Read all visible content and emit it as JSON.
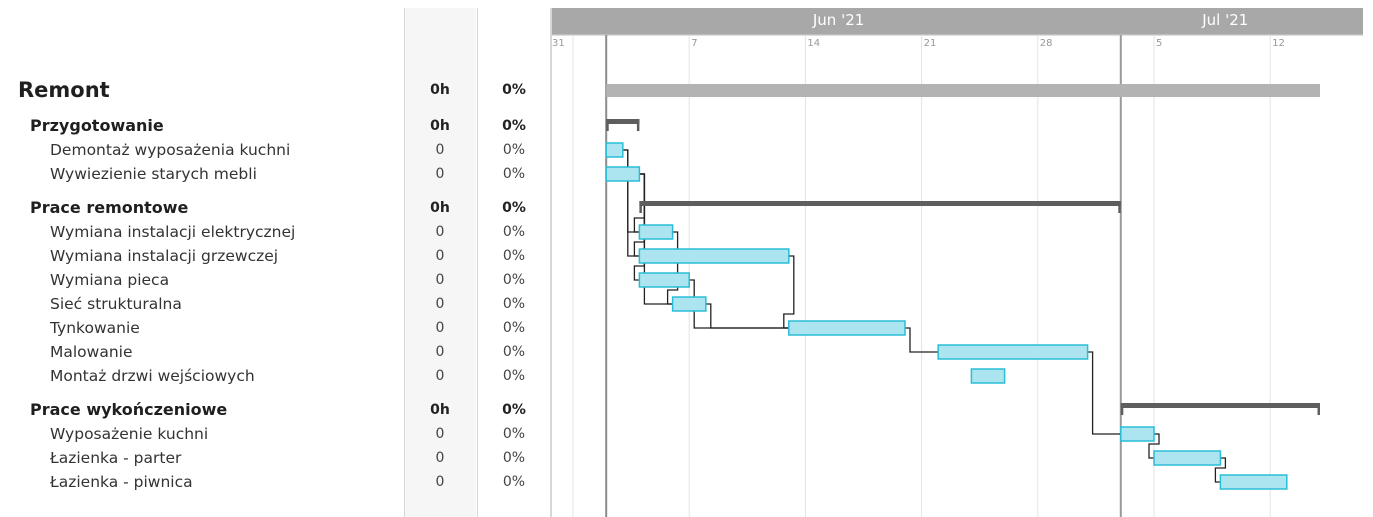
{
  "chart_data": {
    "type": "gantt",
    "months": [
      "Jun '21",
      "Jul '21"
    ],
    "day_ticks": [
      "31",
      "7",
      "14",
      "21",
      "28",
      "5",
      "12"
    ],
    "range": {
      "start": "2021-05-31",
      "end": "2021-07-18"
    },
    "today": "2021-07-03",
    "colors": {
      "task_fill": "#ace5f0",
      "task_border": "#29bdd6",
      "summary": "#5e5e5e",
      "project": "#b3b3b3",
      "header": "#a8a8a8",
      "grid": "#e3e3e3",
      "link": "#222222"
    },
    "rows": [
      {
        "id": "p",
        "type": "project",
        "name": "Remont",
        "hours": "0h",
        "pct": "0%",
        "start": "2021-06-02",
        "end": "2021-07-15"
      },
      {
        "id": "g1",
        "type": "group",
        "name": "Przygotowanie",
        "hours": "0h",
        "pct": "0%",
        "start": "2021-06-02",
        "end": "2021-06-04"
      },
      {
        "id": "t1",
        "type": "task",
        "name": "Demontaż wyposażenia kuchni",
        "hours": "0",
        "pct": "0%",
        "start": "2021-06-02",
        "end": "2021-06-03"
      },
      {
        "id": "t2",
        "type": "task",
        "name": "Wywiezienie starych mebli",
        "hours": "0",
        "pct": "0%",
        "start": "2021-06-02",
        "end": "2021-06-04"
      },
      {
        "id": "g2",
        "type": "group",
        "name": "Prace remontowe",
        "hours": "0h",
        "pct": "0%",
        "start": "2021-06-04",
        "end": "2021-07-03"
      },
      {
        "id": "t3",
        "type": "task",
        "name": "Wymiana instalacji elektrycznej",
        "hours": "0",
        "pct": "0%",
        "start": "2021-06-04",
        "end": "2021-06-06"
      },
      {
        "id": "t4",
        "type": "task",
        "name": "Wymiana instalacji grzewczej",
        "hours": "0",
        "pct": "0%",
        "start": "2021-06-04",
        "end": "2021-06-13"
      },
      {
        "id": "t5",
        "type": "task",
        "name": "Wymiana pieca",
        "hours": "0",
        "pct": "0%",
        "start": "2021-06-04",
        "end": "2021-06-07"
      },
      {
        "id": "t6",
        "type": "task",
        "name": "Sieć strukturalna",
        "hours": "0",
        "pct": "0%",
        "start": "2021-06-06",
        "end": "2021-06-08"
      },
      {
        "id": "t7",
        "type": "task",
        "name": "Tynkowanie",
        "hours": "0",
        "pct": "0%",
        "start": "2021-06-13",
        "end": "2021-06-20"
      },
      {
        "id": "t8",
        "type": "task",
        "name": "Malowanie",
        "hours": "0",
        "pct": "0%",
        "start": "2021-06-22",
        "end": "2021-07-01"
      },
      {
        "id": "t9",
        "type": "task",
        "name": "Montaż drzwi wejściowych",
        "hours": "0",
        "pct": "0%",
        "start": "2021-06-24",
        "end": "2021-06-26"
      },
      {
        "id": "g3",
        "type": "group",
        "name": "Prace wykończeniowe",
        "hours": "0h",
        "pct": "0%",
        "start": "2021-07-03",
        "end": "2021-07-15"
      },
      {
        "id": "t10",
        "type": "task",
        "name": "Wyposażenie kuchni",
        "hours": "0",
        "pct": "0%",
        "start": "2021-07-03",
        "end": "2021-07-05"
      },
      {
        "id": "t11",
        "type": "task",
        "name": "Łazienka - parter",
        "hours": "0",
        "pct": "0%",
        "start": "2021-07-05",
        "end": "2021-07-09"
      },
      {
        "id": "t12",
        "type": "task",
        "name": "Łazienka - piwnica",
        "hours": "0",
        "pct": "0%",
        "start": "2021-07-09",
        "end": "2021-07-13"
      }
    ],
    "links": [
      [
        "t1",
        "t3"
      ],
      [
        "t1",
        "t4"
      ],
      [
        "t2",
        "t3"
      ],
      [
        "t2",
        "t4"
      ],
      [
        "t2",
        "t5"
      ],
      [
        "t2",
        "t6"
      ],
      [
        "t3",
        "t6"
      ],
      [
        "t4",
        "t7"
      ],
      [
        "t5",
        "t7"
      ],
      [
        "t6",
        "t7"
      ],
      [
        "t7",
        "t8"
      ],
      [
        "t8",
        "t10"
      ],
      [
        "t10",
        "t11"
      ],
      [
        "t11",
        "t12"
      ]
    ]
  }
}
